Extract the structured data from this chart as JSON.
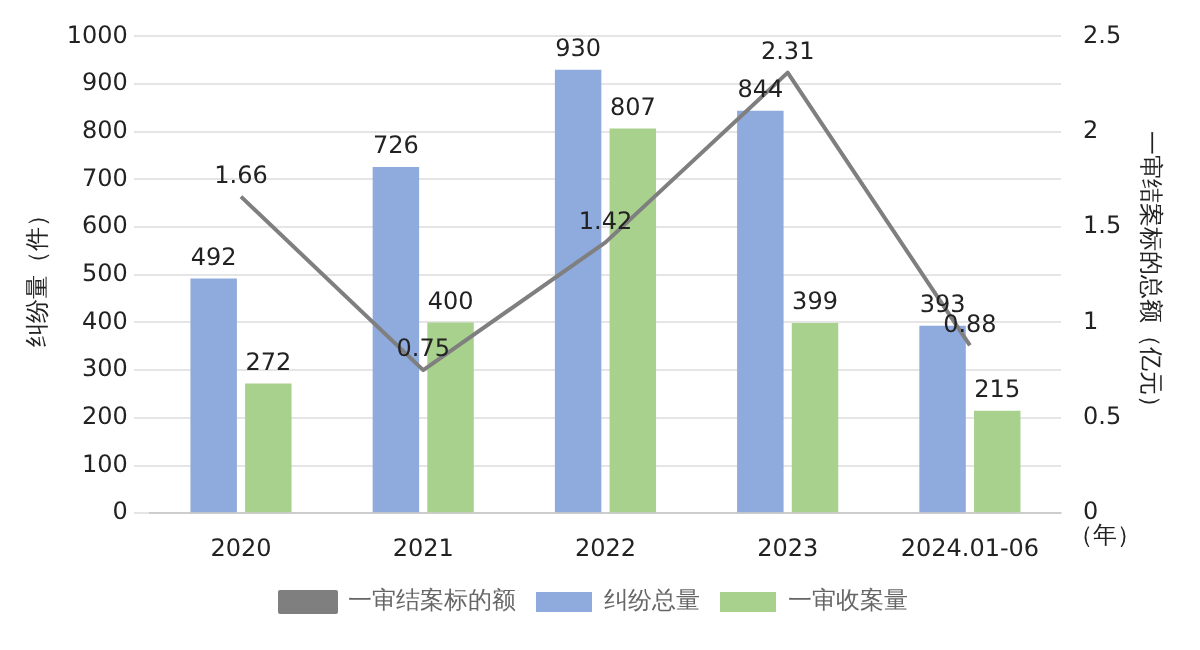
{
  "chart_data": {
    "type": "bar",
    "categories": [
      "2020",
      "2021",
      "2022",
      "2023",
      "2024.01-06"
    ],
    "series": [
      {
        "name": "纠纷总量",
        "color": "#8faadc",
        "values": [
          492,
          726,
          930,
          844,
          393
        ]
      },
      {
        "name": "一审收案量",
        "color": "#a9d18e",
        "values": [
          272,
          400,
          807,
          399,
          215
        ]
      },
      {
        "name": "一审结案标的额",
        "type": "line",
        "axis": "y2",
        "color": "#7f7f7f",
        "values": [
          1.66,
          0.75,
          1.42,
          2.31,
          0.88
        ]
      }
    ],
    "ylabel": "纠纷量（件）",
    "y2label": "一审结案标的总额（亿元）",
    "xlabel": "（年）",
    "ylim": [
      0,
      1000
    ],
    "yticks": [
      0,
      100,
      200,
      300,
      400,
      500,
      600,
      700,
      800,
      900,
      1000
    ],
    "y2lim": [
      0,
      2.5
    ],
    "y2ticks": [
      0,
      0.5,
      1,
      1.5,
      2,
      2.5
    ],
    "grid": "y",
    "legend": "bottom",
    "data_labels": true,
    "marker": "none",
    "line_style": "solid"
  }
}
